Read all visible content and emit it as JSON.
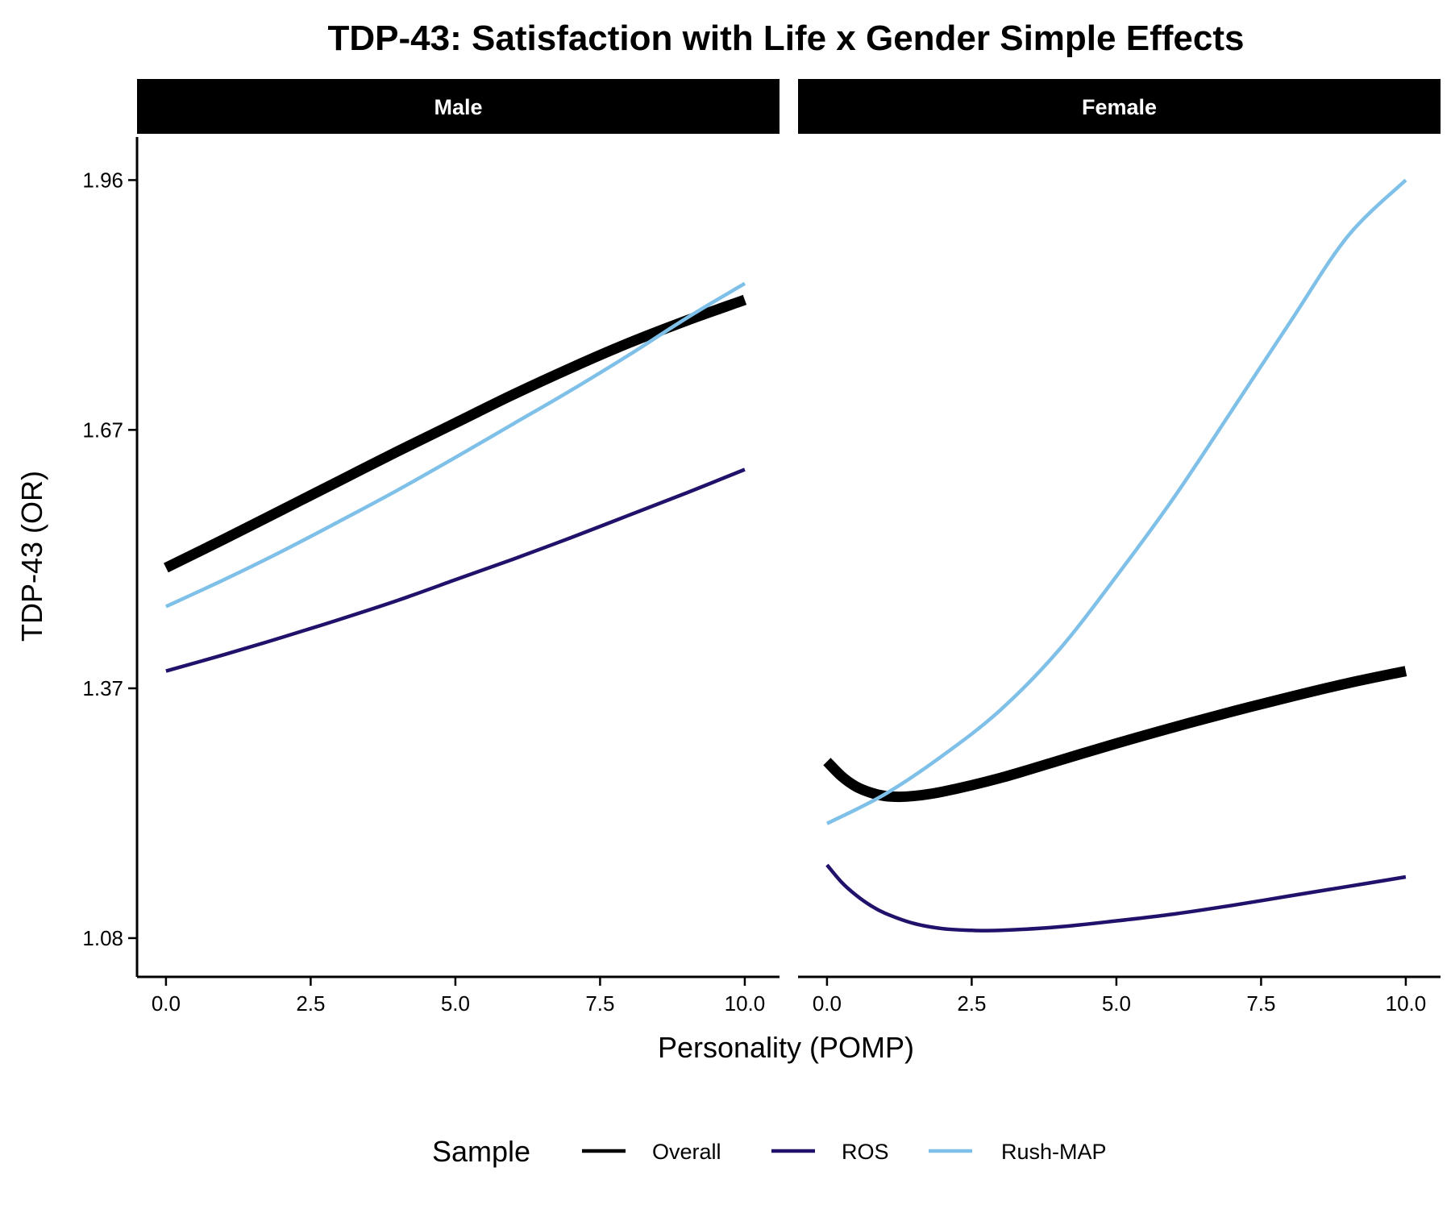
{
  "chart_data": {
    "type": "line",
    "title": "TDP-43: Satisfaction with Life x Gender Simple Effects",
    "xlabel": "Personality (POMP)",
    "ylabel": "TDP-43 (OR)",
    "xlim": [
      -0.5,
      10.6
    ],
    "ylim": [
      1.035,
      2.01
    ],
    "x_ticks": [
      0,
      2.5,
      5,
      7.5,
      10
    ],
    "x_tick_labels": [
      "0.0",
      "2.5",
      "5.0",
      "7.5",
      "10.0"
    ],
    "y_ticks": [
      1.08,
      1.37,
      1.67,
      1.96
    ],
    "y_tick_labels": [
      "1.08",
      "1.37",
      "1.67",
      "1.96"
    ],
    "grid": false,
    "legend": {
      "title": "Sample",
      "position": "bottom",
      "entries": [
        {
          "label": "Overall",
          "color": "#000000"
        },
        {
          "label": "ROS",
          "color": "#22116b"
        },
        {
          "label": "Rush-MAP",
          "color": "#7ec0e8"
        }
      ]
    },
    "panels": [
      {
        "label": "Male",
        "series": [
          {
            "name": "Overall",
            "color": "#000000",
            "width": 13,
            "x": [
              0,
              1,
              2,
              3,
              4,
              5,
              6,
              7,
              8,
              9,
              10
            ],
            "y": [
              1.51,
              1.543,
              1.577,
              1.611,
              1.645,
              1.678,
              1.711,
              1.742,
              1.771,
              1.797,
              1.821
            ]
          },
          {
            "name": "ROS",
            "color": "#22116b",
            "width": 4.5,
            "x": [
              0,
              1,
              2,
              3,
              4,
              5,
              6,
              7,
              8,
              9,
              10
            ],
            "y": [
              1.39,
              1.409,
              1.429,
              1.45,
              1.472,
              1.496,
              1.52,
              1.545,
              1.571,
              1.597,
              1.624
            ]
          },
          {
            "name": "Rush-MAP",
            "color": "#7ec0e8",
            "width": 4.5,
            "x": [
              0,
              1,
              2,
              3,
              4,
              5,
              6,
              7,
              8,
              9,
              10
            ],
            "y": [
              1.465,
              1.496,
              1.529,
              1.564,
              1.6,
              1.638,
              1.677,
              1.716,
              1.757,
              1.8,
              1.84
            ]
          }
        ]
      },
      {
        "label": "Female",
        "series": [
          {
            "name": "Overall",
            "color": "#000000",
            "width": 13,
            "x": [
              0,
              0.25,
              0.5,
              0.75,
              1,
              1.25,
              1.5,
              2,
              3,
              4,
              5,
              6,
              7,
              8,
              9,
              10
            ],
            "y": [
              1.285,
              1.268,
              1.256,
              1.249,
              1.245,
              1.244,
              1.245,
              1.25,
              1.266,
              1.286,
              1.306,
              1.325,
              1.343,
              1.36,
              1.376,
              1.39
            ]
          },
          {
            "name": "ROS",
            "color": "#22116b",
            "width": 4.5,
            "x": [
              0,
              0.25,
              0.5,
              0.75,
              1,
              1.5,
              2,
              2.5,
              3,
              4,
              5,
              6,
              7,
              8,
              9,
              10
            ],
            "y": [
              1.165,
              1.145,
              1.13,
              1.118,
              1.109,
              1.097,
              1.091,
              1.089,
              1.089,
              1.093,
              1.1,
              1.108,
              1.118,
              1.129,
              1.14,
              1.151
            ]
          },
          {
            "name": "Rush-MAP",
            "color": "#7ec0e8",
            "width": 4.5,
            "x": [
              0,
              1,
              2,
              3,
              4,
              5,
              6,
              7,
              8,
              9,
              10
            ],
            "y": [
              1.213,
              1.247,
              1.292,
              1.345,
              1.414,
              1.5,
              1.592,
              1.693,
              1.795,
              1.895,
              1.96
            ]
          }
        ]
      }
    ]
  }
}
